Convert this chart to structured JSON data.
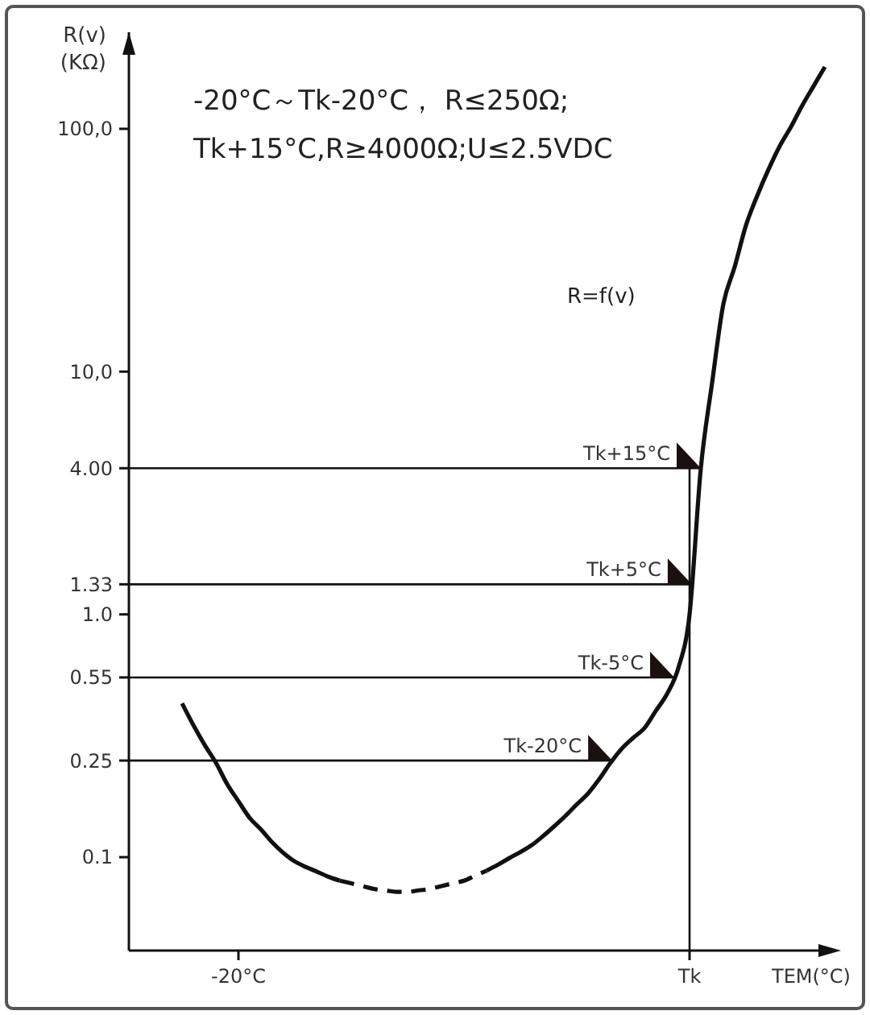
{
  "chart_data": {
    "type": "line",
    "xlabel": "TEM(°C)",
    "ylabel": "R(v)\n(KΩ)",
    "categories": [
      null,
      null,
      null,
      null,
      null,
      null,
      null,
      null,
      null,
      "-20°C",
      null,
      null,
      null,
      null,
      null,
      null,
      null,
      null,
      null,
      null,
      null,
      null,
      null,
      null,
      null,
      null,
      null,
      null,
      null,
      null,
      null,
      null,
      null,
      null,
      null,
      null,
      null,
      null,
      null,
      null,
      null,
      null,
      null,
      null,
      null,
      null,
      null,
      null,
      null,
      "Tk",
      null,
      null,
      null,
      null,
      null,
      null,
      null,
      null,
      null,
      null,
      null,
      null
    ],
    "series": [
      {
        "color": "#111111",
        "line_style": "solid",
        "values": [
          null,
          null,
          null,
          null,
          0.43,
          0.35,
          0.29,
          0.245,
          0.2,
          0.17,
          0.145,
          0.13,
          0.115,
          0.104,
          0.096,
          0.091,
          0.087,
          0.083,
          0.08,
          null,
          null,
          null,
          null,
          null,
          null,
          null,
          null,
          null,
          null,
          null,
          null,
          null,
          null,
          null,
          null,
          null,
          null,
          null,
          null,
          null,
          null,
          null,
          null,
          null,
          null,
          null,
          null,
          null,
          null,
          null,
          null,
          null,
          null,
          null,
          null,
          null,
          null,
          null,
          null,
          null,
          null,
          null
        ]
      },
      {
        "color": "#111111",
        "line_style": "dashed",
        "values": [
          null,
          null,
          null,
          null,
          null,
          null,
          null,
          null,
          null,
          null,
          null,
          null,
          null,
          null,
          null,
          null,
          null,
          null,
          0.08,
          0.078,
          0.076,
          0.074,
          0.073,
          0.072,
          0.072,
          0.073,
          0.074,
          0.076,
          0.078,
          0.08,
          0.084,
          0.088,
          null,
          null,
          null,
          null,
          null,
          null,
          null,
          null,
          null,
          null,
          null,
          null,
          null,
          null,
          null,
          null,
          null,
          null,
          null,
          null,
          null,
          null,
          null,
          null,
          null,
          null,
          null,
          null,
          null,
          null
        ]
      },
      {
        "color": "#111111",
        "line_style": "solid",
        "values": [
          null,
          null,
          null,
          null,
          null,
          null,
          null,
          null,
          null,
          null,
          null,
          null,
          null,
          null,
          null,
          null,
          null,
          null,
          null,
          null,
          null,
          null,
          null,
          null,
          null,
          null,
          null,
          null,
          null,
          null,
          null,
          0.088,
          0.093,
          0.099,
          0.105,
          0.112,
          0.122,
          0.134,
          0.148,
          0.165,
          0.183,
          0.21,
          0.245,
          0.28,
          0.31,
          0.34,
          0.4,
          0.47,
          0.6,
          1.0,
          4.0,
          9,
          19,
          27,
          40,
          53,
          68,
          85,
          102,
          125,
          150,
          180
        ]
      }
    ],
    "log": "y",
    "ylim": [
      0.04,
      250
    ],
    "yticks": [
      0.1,
      0.25,
      0.55,
      {
        "value": 1,
        "label": "1.0"
      },
      1.33,
      {
        "value": 4,
        "label": "4.00"
      },
      {
        "value": 10,
        "label": "10,0"
      },
      {
        "value": 100,
        "label": "100,0"
      }
    ],
    "ref_lines": [
      {
        "axis": "y",
        "value": 4,
        "label": "Tk+15°C",
        "color": "#111111"
      },
      {
        "axis": "y",
        "value": 1.33,
        "label": "Tk+5°C",
        "color": "#111111"
      },
      {
        "axis": "y",
        "value": 0.55,
        "label": "Tk-5°C",
        "color": "#111111"
      },
      {
        "axis": "y",
        "value": 0.25,
        "label": "Tk-20°C",
        "color": "#111111"
      },
      {
        "axis": "x",
        "value": "Tk",
        "color": "#111111"
      }
    ],
    "annotations": [
      "-20°C～Tk-20°C， R≤250Ω;",
      "Tk+15°C,R≥4000Ω;U≤2.5VDC",
      "R=f(v)"
    ]
  }
}
